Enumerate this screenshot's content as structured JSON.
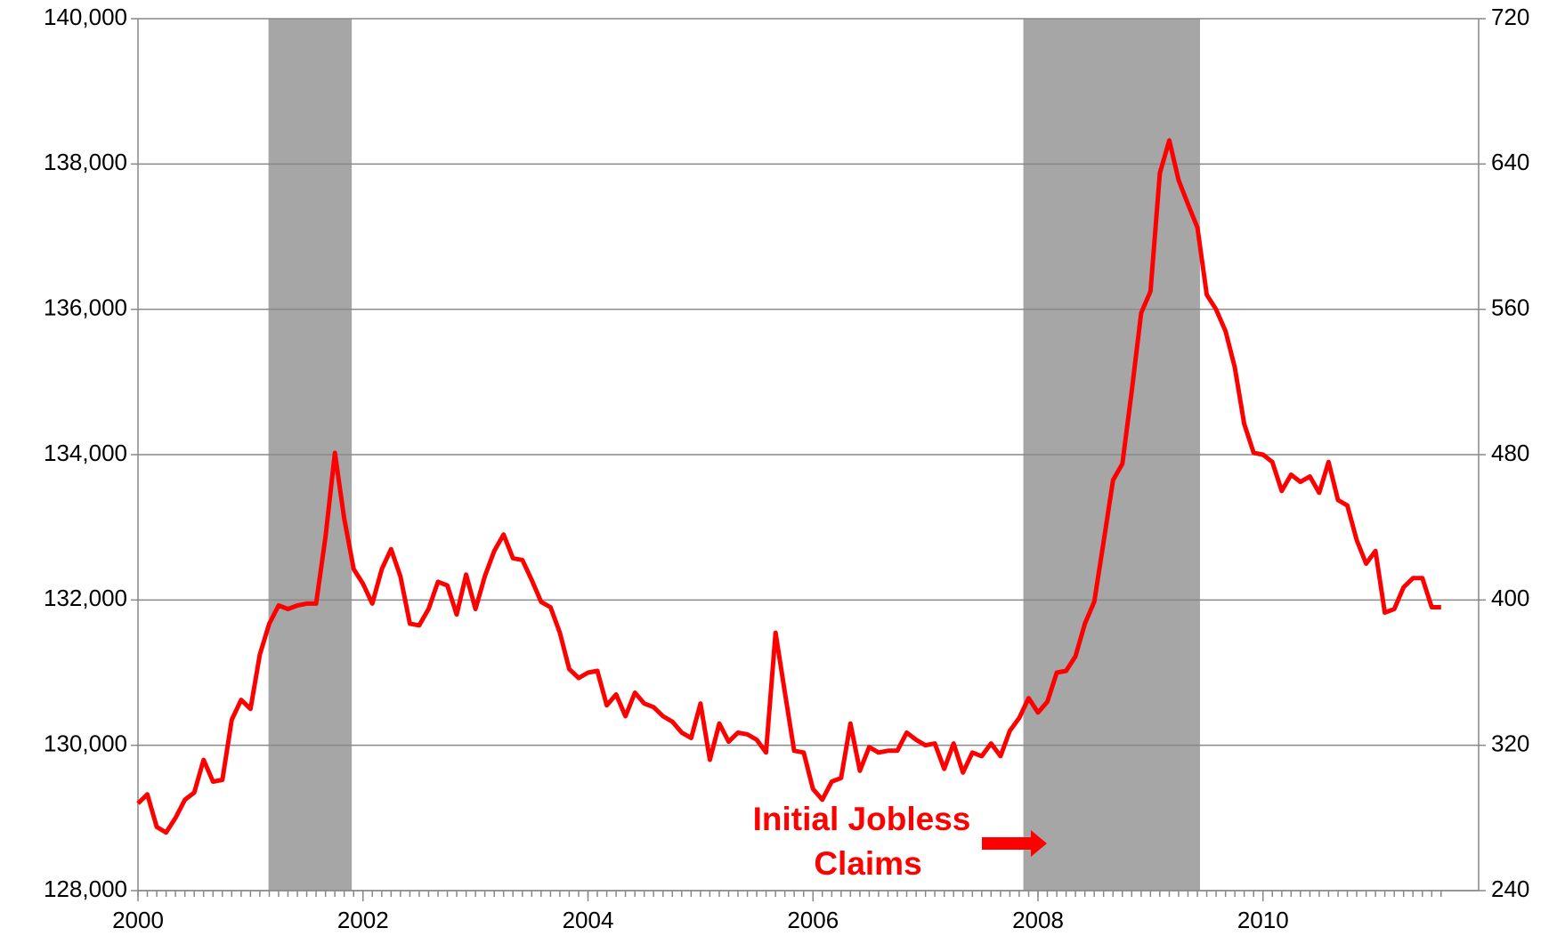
{
  "chart_data": {
    "type": "line",
    "annotation": {
      "lines": [
        "Initial Jobless",
        "Claims"
      ],
      "color": "#ff0000"
    },
    "xlim": [
      2000,
      2011.917
    ],
    "xticks": [
      2000,
      2002,
      2004,
      2006,
      2008,
      2010
    ],
    "ylim": [
      128000,
      140000
    ],
    "yticks": [
      {
        "value": 128000,
        "label": "128,000"
      },
      {
        "value": 130000,
        "label": "130,000"
      },
      {
        "value": 132000,
        "label": "132,000"
      },
      {
        "value": 134000,
        "label": "134,000"
      },
      {
        "value": 136000,
        "label": "136,000"
      },
      {
        "value": 138000,
        "label": "138,000"
      },
      {
        "value": 140000,
        "label": "140,000"
      }
    ],
    "y2lim": [
      240,
      720
    ],
    "y2ticks": [
      240,
      320,
      400,
      480,
      560,
      640,
      720
    ],
    "grid": true,
    "shaded_ranges": [
      [
        2001.16,
        2001.9
      ],
      [
        2007.87,
        2009.44
      ]
    ],
    "shade_color": "#a6a6a6",
    "x": [
      2000,
      2000.083,
      2000.167,
      2000.25,
      2000.333,
      2000.417,
      2000.5,
      2000.583,
      2000.667,
      2000.75,
      2000.833,
      2000.917,
      2001,
      2001.083,
      2001.167,
      2001.25,
      2001.333,
      2001.417,
      2001.5,
      2001.583,
      2001.667,
      2001.75,
      2001.833,
      2001.917,
      2002,
      2002.083,
      2002.167,
      2002.25,
      2002.333,
      2002.417,
      2002.5,
      2002.583,
      2002.667,
      2002.75,
      2002.833,
      2002.917,
      2003,
      2003.083,
      2003.167,
      2003.25,
      2003.333,
      2003.417,
      2003.5,
      2003.583,
      2003.667,
      2003.75,
      2003.833,
      2003.917,
      2004,
      2004.083,
      2004.167,
      2004.25,
      2004.333,
      2004.417,
      2004.5,
      2004.583,
      2004.667,
      2004.75,
      2004.833,
      2004.917,
      2005,
      2005.083,
      2005.167,
      2005.25,
      2005.333,
      2005.417,
      2005.5,
      2005.583,
      2005.667,
      2005.75,
      2005.833,
      2005.917,
      2006,
      2006.083,
      2006.167,
      2006.25,
      2006.333,
      2006.417,
      2006.5,
      2006.583,
      2006.667,
      2006.75,
      2006.833,
      2006.917,
      2007,
      2007.083,
      2007.167,
      2007.25,
      2007.333,
      2007.417,
      2007.5,
      2007.583,
      2007.667,
      2007.75,
      2007.833,
      2007.917,
      2008,
      2008.083,
      2008.167,
      2008.25,
      2008.333,
      2008.417,
      2008.5,
      2008.583,
      2008.667,
      2008.75,
      2008.833,
      2008.917,
      2009,
      2009.083,
      2009.167,
      2009.25,
      2009.333,
      2009.417,
      2009.5,
      2009.583,
      2009.667,
      2009.75,
      2009.833,
      2009.917,
      2010,
      2010.083,
      2010.167,
      2010.25,
      2010.333,
      2010.417,
      2010.5,
      2010.583,
      2010.667,
      2010.75,
      2010.833,
      2010.917,
      2011,
      2011.083,
      2011.167,
      2011.25,
      2011.333,
      2011.417,
      2011.5,
      2011.583
    ],
    "series": [
      {
        "axis": "y2",
        "color": "#ff0000",
        "values": [
          288,
          293,
          275,
          272,
          280,
          290,
          294,
          312,
          300,
          301,
          334,
          345,
          340,
          370,
          387,
          397,
          395,
          397,
          398,
          398,
          435,
          481,
          445,
          417,
          409,
          398,
          417,
          428,
          413,
          387,
          386,
          395,
          410,
          408,
          392,
          414,
          395,
          413,
          427,
          436,
          423,
          422,
          411,
          399,
          396,
          382,
          362,
          357,
          360,
          361,
          342,
          348,
          336,
          349,
          343,
          341,
          336,
          333,
          327,
          324,
          343,
          312,
          332,
          322,
          327,
          326,
          323,
          316,
          382,
          349,
          317,
          316,
          296,
          290,
          300,
          302,
          332,
          306,
          319,
          316,
          317,
          317,
          327,
          323,
          320,
          321,
          307,
          321,
          305,
          316,
          314,
          321,
          314,
          328,
          335,
          346,
          338,
          344,
          360,
          361,
          369,
          387,
          399,
          432,
          466,
          475,
          515,
          558,
          570,
          635,
          653,
          631,
          618,
          605,
          568,
          560,
          548,
          528,
          497,
          481,
          480,
          476,
          460,
          469,
          465,
          468,
          459,
          476,
          455,
          452,
          433,
          420,
          427,
          393,
          395,
          407,
          412,
          412,
          396,
          396
        ]
      }
    ]
  }
}
